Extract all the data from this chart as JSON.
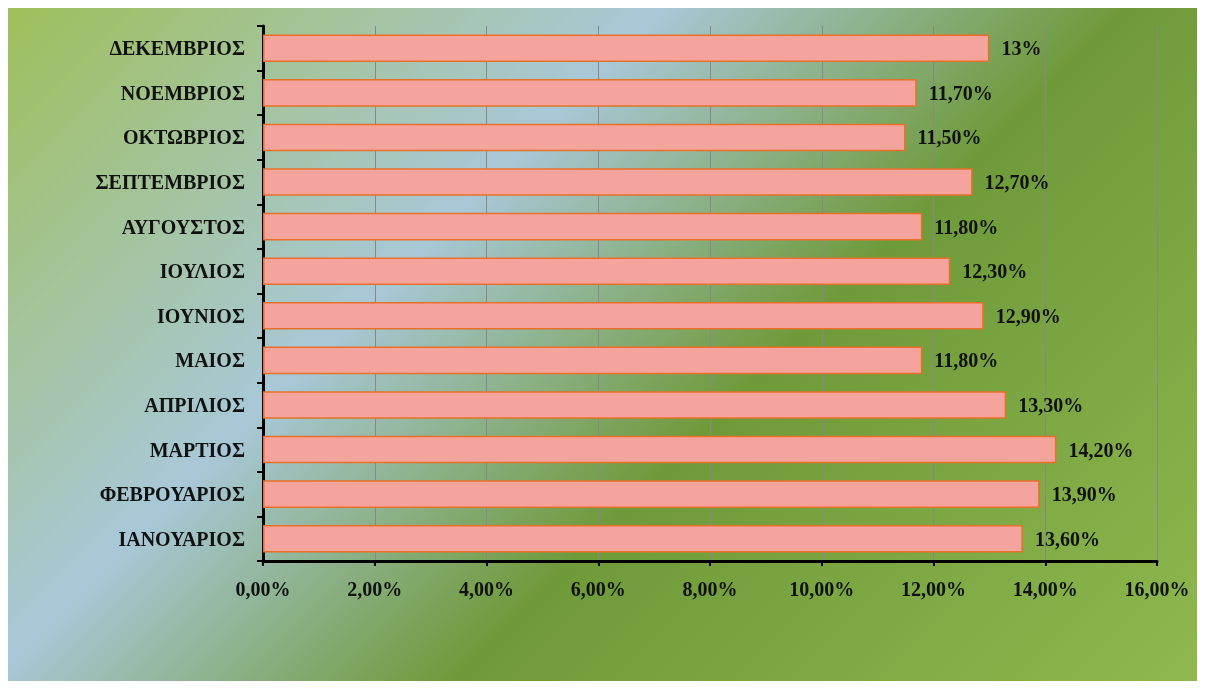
{
  "chart_data": {
    "type": "bar",
    "orientation": "horizontal",
    "categories": [
      "ΔΕΚΕΜΒΡΙΟΣ",
      "ΝΟΕΜΒΡΙΟΣ",
      "ΟΚΤΩΒΡΙΟΣ",
      "ΣΕΠΤΕΜΒΡΙΟΣ",
      "ΑΥΓΟΥΣΤΟΣ",
      "ΙΟΥΛΙΟΣ",
      "ΙΟΥΝΙΟΣ",
      "ΜΑΙΟΣ",
      "ΑΠΡΙΛΙΟΣ",
      "ΜΑΡΤΙΟΣ",
      "ΦΕΒΡΟΥΑΡΙΟΣ",
      "ΙΑΝΟΥΑΡΙΟΣ"
    ],
    "values": [
      13,
      11.7,
      11.5,
      12.7,
      11.8,
      12.3,
      12.9,
      11.8,
      13.3,
      14.2,
      13.9,
      13.6
    ],
    "value_labels": [
      "13%",
      "11,70%",
      "11,50%",
      "12,70%",
      "11,80%",
      "12,30%",
      "12,90%",
      "11,80%",
      "13,30%",
      "14,20%",
      "13,90%",
      "13,60%"
    ],
    "color": "#f4a49c",
    "xlim": [
      0,
      16
    ],
    "xticks": [
      {
        "value": 0,
        "label": "0,00%"
      },
      {
        "value": 2,
        "label": "2,00%"
      },
      {
        "value": 4,
        "label": "4,00%"
      },
      {
        "value": 6,
        "label": "6,00%"
      },
      {
        "value": 8,
        "label": "8,00%"
      },
      {
        "value": 10,
        "label": "10,00%"
      },
      {
        "value": 12,
        "label": "12,00%"
      },
      {
        "value": 14,
        "label": "14,00%"
      },
      {
        "value": 16,
        "label": "16,00%"
      }
    ],
    "grid": "x"
  }
}
